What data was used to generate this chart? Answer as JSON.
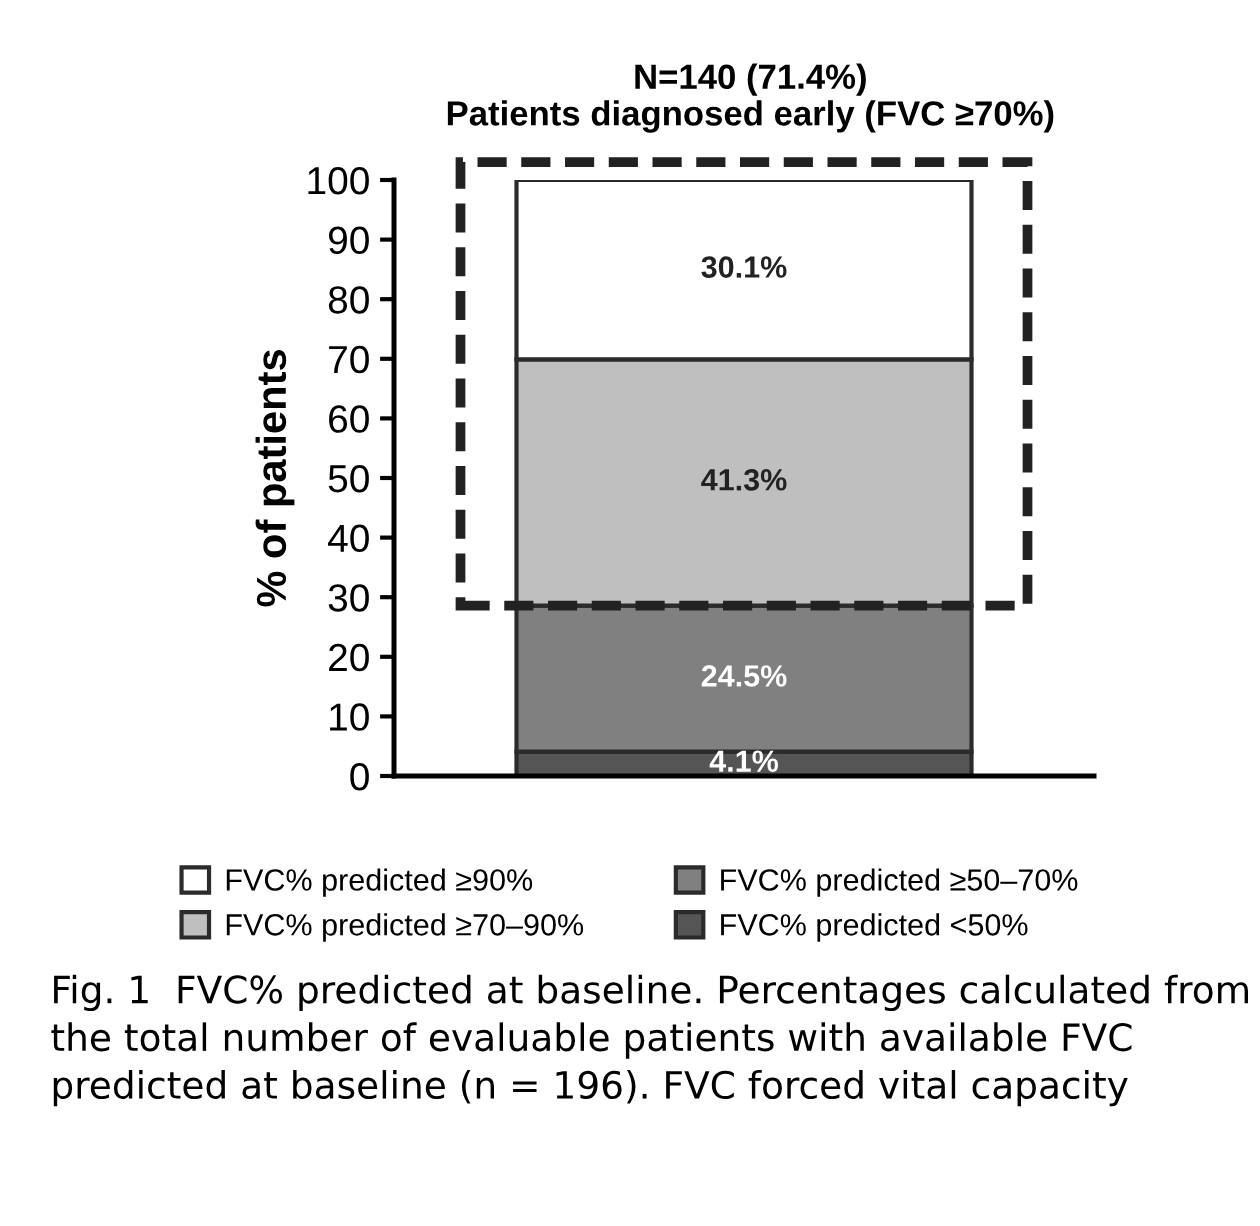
{
  "chart_data": {
    "type": "bar",
    "stacked": true,
    "title": "N=140 (71.4%)",
    "subtitle": "Patients diagnosed early (FVC ≥70%)",
    "ylabel": "% of patients",
    "categories": [
      null
    ],
    "series": [
      {
        "name": "FVC% predicted <50%",
        "color": "#555555",
        "values": [
          4.1
        ],
        "value_labels": [
          "4.1%"
        ]
      },
      {
        "name": "FVC% predicted ≥50–70%",
        "color": "#808080",
        "values": [
          24.5
        ],
        "value_labels": [
          "24.5%"
        ]
      },
      {
        "name": "FVC% predicted ≥70–90%",
        "color": "#bfbfbf",
        "values": [
          41.3
        ],
        "value_labels": [
          "41.3%"
        ]
      },
      {
        "name": "FVC% predicted ≥90%",
        "color": "#ffffff",
        "values": [
          30.1
        ],
        "value_labels": [
          "30.1%"
        ]
      }
    ],
    "ylim": [
      0,
      100
    ],
    "yticks": [
      0,
      10,
      20,
      30,
      40,
      50,
      60,
      70,
      80,
      90,
      100
    ],
    "grid": false,
    "legend": "bottom",
    "annotations": [
      "Fig. 1  FVC% predicted at baseline. Percentages calculated from the total number of evaluable patients with available FVC predicted at baseline (n = 196). FVC forced vital capacity"
    ]
  }
}
